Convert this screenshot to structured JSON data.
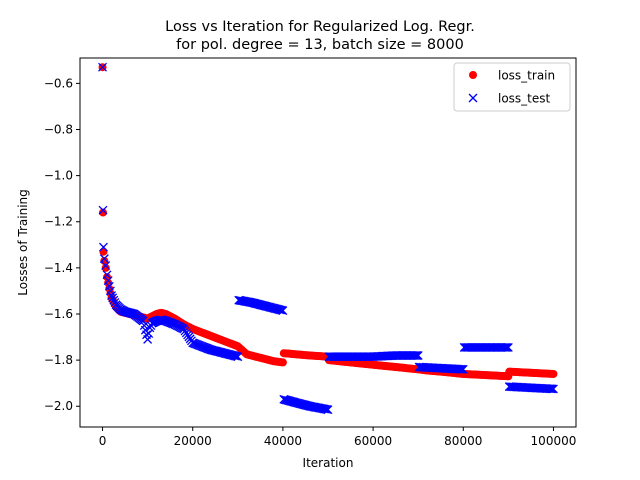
{
  "chart_data": {
    "type": "scatter",
    "title_line1": "Loss vs Iteration for Regularized Log. Regr.",
    "title_line2": "for pol. degree = 13, batch size = 8000",
    "xlabel": "Iteration",
    "ylabel": "Losses of Training",
    "xlim": [
      -5000,
      105000
    ],
    "ylim": [
      -2.09,
      -0.49
    ],
    "xticks": [
      0,
      20000,
      40000,
      60000,
      80000,
      100000
    ],
    "xtick_labels": [
      "0",
      "20000",
      "40000",
      "60000",
      "80000",
      "100000"
    ],
    "yticks": [
      -0.6,
      -0.8,
      -1.0,
      -1.2,
      -1.4,
      -1.6,
      -1.8,
      -2.0
    ],
    "ytick_labels": [
      "−0.6",
      "−0.8",
      "−1.0",
      "−1.2",
      "−1.4",
      "−1.6",
      "−1.8",
      "−2.0"
    ],
    "legend_position": "top-right",
    "grid": false,
    "series": [
      {
        "name": "loss_train",
        "marker": "circle",
        "color": "#ff0000",
        "points": [
          [
            0,
            -0.53
          ],
          [
            100,
            -1.16
          ],
          [
            200,
            -1.33
          ],
          [
            400,
            -1.37
          ],
          [
            700,
            -1.4
          ],
          [
            1000,
            -1.44
          ],
          [
            1500,
            -1.49
          ],
          [
            2000,
            -1.53
          ],
          [
            3000,
            -1.57
          ],
          [
            4000,
            -1.59
          ],
          [
            5000,
            -1.595
          ],
          [
            6000,
            -1.6
          ],
          [
            7000,
            -1.605
          ],
          [
            8000,
            -1.61
          ],
          [
            9000,
            -1.615
          ],
          [
            10000,
            -1.62
          ],
          [
            11000,
            -1.61
          ],
          [
            12000,
            -1.6
          ],
          [
            13000,
            -1.595
          ],
          [
            14000,
            -1.6
          ],
          [
            16000,
            -1.62
          ],
          [
            18000,
            -1.645
          ],
          [
            20000,
            -1.665
          ],
          [
            22000,
            -1.68
          ],
          [
            24000,
            -1.695
          ],
          [
            26000,
            -1.71
          ],
          [
            28000,
            -1.725
          ],
          [
            30000,
            -1.74
          ],
          [
            32000,
            -1.775
          ],
          [
            34000,
            -1.785
          ],
          [
            36000,
            -1.795
          ],
          [
            38000,
            -1.805
          ],
          [
            40000,
            -1.81
          ],
          [
            40200,
            -1.77
          ],
          [
            43000,
            -1.775
          ],
          [
            46000,
            -1.78
          ],
          [
            50000,
            -1.785
          ],
          [
            50200,
            -1.8
          ],
          [
            55000,
            -1.81
          ],
          [
            60000,
            -1.82
          ],
          [
            65000,
            -1.83
          ],
          [
            70000,
            -1.84
          ],
          [
            72000,
            -1.845
          ],
          [
            75000,
            -1.85
          ],
          [
            80000,
            -1.86
          ],
          [
            85000,
            -1.865
          ],
          [
            90000,
            -1.87
          ],
          [
            90200,
            -1.85
          ],
          [
            95000,
            -1.855
          ],
          [
            100000,
            -1.86
          ]
        ]
      },
      {
        "name": "loss_test",
        "marker": "x",
        "color": "#0000ff",
        "points": [
          [
            0,
            -0.53
          ],
          [
            100,
            -1.15
          ],
          [
            200,
            -1.31
          ],
          [
            400,
            -1.36
          ],
          [
            700,
            -1.39
          ],
          [
            1000,
            -1.43
          ],
          [
            1500,
            -1.48
          ],
          [
            2000,
            -1.52
          ],
          [
            3000,
            -1.56
          ],
          [
            4000,
            -1.58
          ],
          [
            5000,
            -1.59
          ],
          [
            6000,
            -1.595
          ],
          [
            7000,
            -1.6
          ],
          [
            8000,
            -1.615
          ],
          [
            9000,
            -1.63
          ],
          [
            10000,
            -1.71
          ],
          [
            10500,
            -1.66
          ],
          [
            11000,
            -1.64
          ],
          [
            12000,
            -1.63
          ],
          [
            13000,
            -1.625
          ],
          [
            14000,
            -1.63
          ],
          [
            16000,
            -1.645
          ],
          [
            18000,
            -1.665
          ],
          [
            20000,
            -1.725
          ],
          [
            22000,
            -1.74
          ],
          [
            24000,
            -1.755
          ],
          [
            26000,
            -1.765
          ],
          [
            28000,
            -1.775
          ],
          [
            30000,
            -1.785
          ],
          [
            30200,
            -1.54
          ],
          [
            33000,
            -1.55
          ],
          [
            36000,
            -1.565
          ],
          [
            40000,
            -1.585
          ],
          [
            40200,
            -1.97
          ],
          [
            43000,
            -1.985
          ],
          [
            46000,
            -2.0
          ],
          [
            50000,
            -2.015
          ],
          [
            50200,
            -1.785
          ],
          [
            55000,
            -1.785
          ],
          [
            60000,
            -1.785
          ],
          [
            65000,
            -1.78
          ],
          [
            70000,
            -1.78
          ],
          [
            70200,
            -1.83
          ],
          [
            75000,
            -1.835
          ],
          [
            80000,
            -1.84
          ],
          [
            80200,
            -1.745
          ],
          [
            85000,
            -1.745
          ],
          [
            90000,
            -1.745
          ],
          [
            90200,
            -1.915
          ],
          [
            95000,
            -1.92
          ],
          [
            100000,
            -1.925
          ]
        ]
      }
    ]
  }
}
